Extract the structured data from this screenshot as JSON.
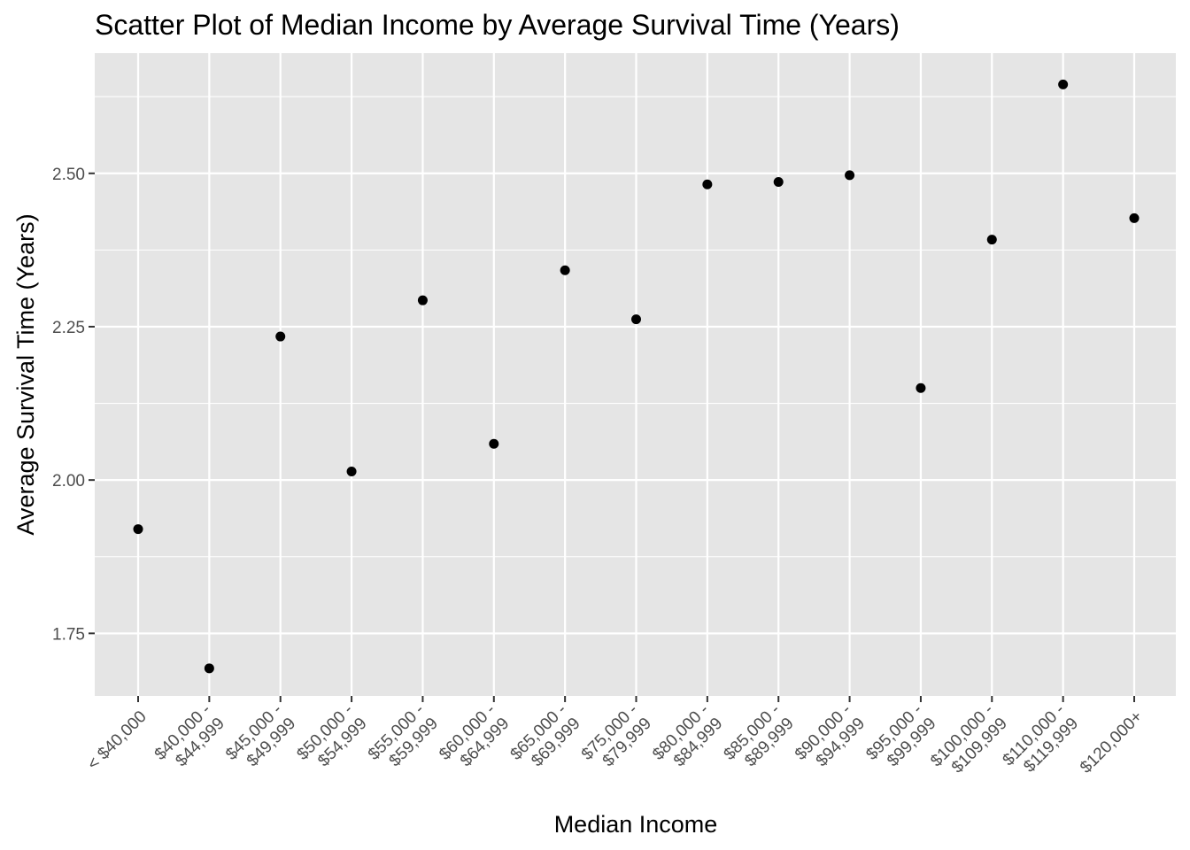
{
  "chart_data": {
    "type": "scatter",
    "title": "Scatter Plot of Median Income by Average Survival Time (Years)",
    "xlabel": "Median Income",
    "ylabel": "Average Survival Time (Years)",
    "categories": [
      [
        "< $40,000"
      ],
      [
        "$40,000 -",
        "$44,999"
      ],
      [
        "$45,000 -",
        "$49,999"
      ],
      [
        "$50,000 -",
        "$54,999"
      ],
      [
        "$55,000 -",
        "$59,999"
      ],
      [
        "$60,000 -",
        "$64,999"
      ],
      [
        "$65,000 -",
        "$69,999"
      ],
      [
        "$75,000 -",
        "$79,999"
      ],
      [
        "$80,000 -",
        "$84,999"
      ],
      [
        "$85,000 -",
        "$89,999"
      ],
      [
        "$90,000 -",
        "$94,999"
      ],
      [
        "$95,000 -",
        "$99,999"
      ],
      [
        "$100,000 -",
        "$109,999"
      ],
      [
        "$110,000 -",
        "$119,999"
      ],
      [
        "$120,000+"
      ]
    ],
    "values": [
      1.92,
      1.693,
      2.234,
      2.014,
      2.293,
      2.059,
      2.342,
      2.262,
      2.482,
      2.486,
      2.497,
      2.15,
      2.392,
      2.645,
      2.427
    ],
    "ylim": [
      1.648,
      2.696
    ],
    "yticks": [
      1.75,
      2.0,
      2.25,
      2.5
    ],
    "ytick_labels": [
      "1.75",
      "2.00",
      "2.25",
      "2.50"
    ],
    "grid": true,
    "colors": {
      "panel_background": "#e5e5e5",
      "grid": "#ffffff",
      "point": "#000000",
      "tick": "#333333",
      "tick_label": "#4d4d4d"
    }
  }
}
